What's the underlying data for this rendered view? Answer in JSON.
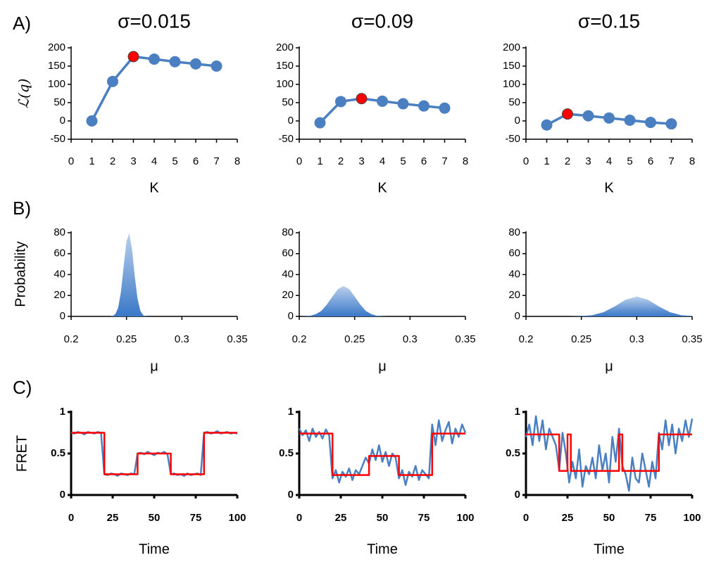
{
  "panel_labels": [
    "A)",
    "B)",
    "C)"
  ],
  "chart_data": [
    {
      "type": "line",
      "title": "σ=0.015",
      "xlabel": "K",
      "ylabel": "ℒ(q)",
      "x": [
        1,
        2,
        3,
        4,
        5,
        6,
        7
      ],
      "series": [
        {
          "color": "#4a7fc1",
          "values": [
            0,
            108,
            176,
            169,
            162,
            156,
            150
          ]
        }
      ],
      "markers": true,
      "highlight_index": 2,
      "highlight_color": "#ff0000",
      "xlim": [
        0,
        8
      ],
      "xticks": [
        0,
        1,
        2,
        3,
        4,
        5,
        6,
        7,
        8
      ],
      "ylim": [
        -50,
        200
      ],
      "yticks": [
        -50,
        0,
        50,
        100,
        150,
        200
      ],
      "grid": false
    },
    {
      "type": "line",
      "title": "σ=0.09",
      "xlabel": "K",
      "x": [
        1,
        2,
        3,
        4,
        5,
        6,
        7
      ],
      "series": [
        {
          "color": "#4a7fc1",
          "values": [
            -5,
            53,
            61,
            54,
            47,
            41,
            35
          ]
        }
      ],
      "markers": true,
      "highlight_index": 2,
      "highlight_color": "#ff0000",
      "xlim": [
        0,
        8
      ],
      "xticks": [
        0,
        1,
        2,
        3,
        4,
        5,
        6,
        7,
        8
      ],
      "ylim": [
        -50,
        200
      ],
      "yticks": [
        -50,
        0,
        50,
        100,
        150,
        200
      ],
      "grid": false
    },
    {
      "type": "line",
      "title": "σ=0.15",
      "xlabel": "K",
      "x": [
        1,
        2,
        3,
        4,
        5,
        6,
        7
      ],
      "series": [
        {
          "color": "#4a7fc1",
          "values": [
            -11,
            19,
            14,
            8,
            2,
            -4,
            -8
          ]
        }
      ],
      "markers": true,
      "highlight_index": 1,
      "highlight_color": "#ff0000",
      "xlim": [
        0,
        8
      ],
      "xticks": [
        0,
        1,
        2,
        3,
        4,
        5,
        6,
        7,
        8
      ],
      "ylim": [
        -50,
        200
      ],
      "yticks": [
        -50,
        0,
        50,
        100,
        150,
        200
      ],
      "grid": false
    },
    {
      "type": "area",
      "xlabel": "μ",
      "ylabel": "Probability",
      "x": [
        0.235,
        0.2375,
        0.24,
        0.2425,
        0.245,
        0.2475,
        0.25,
        0.2525,
        0.255,
        0.2575,
        0.26,
        0.2625,
        0.265,
        0.2675,
        0.27
      ],
      "series": [
        {
          "color": "#3a78c8",
          "values": [
            0,
            0.5,
            2.3,
            8.3,
            23.6,
            48.5,
            72,
            79.5,
            64,
            38,
            16.8,
            5.3,
            1.2,
            0.2,
            0
          ]
        }
      ],
      "xlim": [
        0.2,
        0.35
      ],
      "xticks": [
        0.2,
        0.25,
        0.3,
        0.35
      ],
      "ylim": [
        0,
        80
      ],
      "yticks": [
        0,
        20,
        40,
        60,
        80
      ],
      "grid": false
    },
    {
      "type": "area",
      "xlabel": "μ",
      "x": [
        0.2,
        0.205,
        0.21,
        0.215,
        0.22,
        0.225,
        0.23,
        0.235,
        0.24,
        0.245,
        0.25,
        0.255,
        0.26,
        0.265,
        0.27,
        0.275,
        0.28
      ],
      "series": [
        {
          "color": "#3a78c8",
          "values": [
            0,
            0.2,
            0.7,
            2.2,
            5.3,
            11.5,
            19,
            26.2,
            29,
            26.2,
            19,
            11.5,
            5.3,
            2.2,
            0.7,
            0.2,
            0
          ]
        }
      ],
      "xlim": [
        0.2,
        0.35
      ],
      "xticks": [
        0.2,
        0.25,
        0.3,
        0.35
      ],
      "ylim": [
        0,
        80
      ],
      "yticks": [
        0,
        20,
        40,
        60,
        80
      ],
      "grid": false
    },
    {
      "type": "area",
      "xlabel": "μ",
      "x": [
        0.24,
        0.25,
        0.26,
        0.27,
        0.28,
        0.29,
        0.3,
        0.31,
        0.32,
        0.33,
        0.34,
        0.35
      ],
      "series": [
        {
          "color": "#3a78c8",
          "values": [
            0,
            0.3,
            1.2,
            4,
            9.5,
            16,
            19,
            16,
            9.5,
            4,
            1.2,
            0.3
          ]
        }
      ],
      "xlim": [
        0.2,
        0.35
      ],
      "xticks": [
        0.2,
        0.25,
        0.3,
        0.35
      ],
      "ylim": [
        0,
        80
      ],
      "yticks": [
        0,
        20,
        40,
        60,
        80
      ],
      "grid": false
    },
    {
      "type": "line",
      "xlabel": "Time",
      "ylabel": "FRET",
      "markers": false,
      "series": [
        {
          "color": "#4a7fc1",
          "x": [
            0,
            2,
            4,
            6,
            8,
            10,
            12,
            14,
            16,
            18,
            20,
            22,
            24,
            26,
            28,
            30,
            32,
            34,
            36,
            38,
            40,
            42,
            44,
            46,
            48,
            50,
            52,
            54,
            56,
            58,
            60,
            62,
            64,
            66,
            68,
            70,
            72,
            74,
            76,
            78,
            80,
            82,
            84,
            86,
            88,
            90,
            92,
            94,
            96,
            98,
            100
          ],
          "values": [
            0.75,
            0.74,
            0.76,
            0.75,
            0.73,
            0.76,
            0.75,
            0.74,
            0.76,
            0.75,
            0.25,
            0.24,
            0.26,
            0.25,
            0.23,
            0.26,
            0.25,
            0.24,
            0.26,
            0.25,
            0.5,
            0.51,
            0.49,
            0.52,
            0.5,
            0.48,
            0.51,
            0.5,
            0.52,
            0.49,
            0.25,
            0.26,
            0.24,
            0.25,
            0.23,
            0.26,
            0.24,
            0.25,
            0.26,
            0.24,
            0.75,
            0.76,
            0.74,
            0.75,
            0.77,
            0.74,
            0.75,
            0.76,
            0.74,
            0.75,
            0.74
          ]
        },
        {
          "color": "#ff0000",
          "x": [
            0,
            20,
            20,
            40,
            40,
            60,
            60,
            80,
            80,
            100
          ],
          "values": [
            0.75,
            0.75,
            0.25,
            0.25,
            0.5,
            0.5,
            0.25,
            0.25,
            0.75,
            0.75
          ]
        }
      ],
      "xlim": [
        0,
        100
      ],
      "xticks": [
        0,
        25,
        50,
        75,
        100
      ],
      "ylim": [
        0,
        1
      ],
      "yticks": [
        0,
        0.5,
        1
      ],
      "grid": false
    },
    {
      "type": "line",
      "xlabel": "Time",
      "markers": false,
      "series": [
        {
          "color": "#4a7fc1",
          "x": [
            0,
            2,
            4,
            6,
            8,
            10,
            12,
            14,
            16,
            18,
            20,
            22,
            24,
            26,
            28,
            30,
            32,
            34,
            36,
            38,
            40,
            42,
            44,
            46,
            48,
            50,
            52,
            54,
            56,
            58,
            60,
            62,
            64,
            66,
            68,
            70,
            72,
            74,
            76,
            78,
            80,
            82,
            84,
            86,
            88,
            90,
            92,
            94,
            96,
            98,
            100
          ],
          "values": [
            0.8,
            0.72,
            0.78,
            0.65,
            0.8,
            0.7,
            0.76,
            0.68,
            0.79,
            0.72,
            0.2,
            0.3,
            0.15,
            0.28,
            0.22,
            0.32,
            0.18,
            0.3,
            0.25,
            0.35,
            0.45,
            0.38,
            0.55,
            0.42,
            0.6,
            0.4,
            0.52,
            0.35,
            0.5,
            0.45,
            0.2,
            0.3,
            0.12,
            0.28,
            0.22,
            0.35,
            0.18,
            0.3,
            0.25,
            0.2,
            0.85,
            0.6,
            0.9,
            0.65,
            0.78,
            0.88,
            0.62,
            0.8,
            0.7,
            0.85,
            0.75
          ]
        },
        {
          "color": "#ff0000",
          "x": [
            0,
            20,
            20,
            42,
            42,
            60,
            60,
            80,
            80,
            100
          ],
          "values": [
            0.74,
            0.74,
            0.24,
            0.24,
            0.47,
            0.47,
            0.24,
            0.24,
            0.74,
            0.74
          ]
        }
      ],
      "xlim": [
        0,
        100
      ],
      "xticks": [
        0,
        25,
        50,
        75,
        100
      ],
      "ylim": [
        0,
        1
      ],
      "yticks": [
        0,
        0.5,
        1
      ],
      "grid": false
    },
    {
      "type": "line",
      "xlabel": "Time",
      "markers": false,
      "series": [
        {
          "color": "#4a7fc1",
          "x": [
            0,
            2,
            4,
            6,
            8,
            10,
            12,
            14,
            16,
            18,
            20,
            22,
            24,
            26,
            28,
            30,
            32,
            34,
            36,
            38,
            40,
            42,
            44,
            46,
            48,
            50,
            52,
            54,
            56,
            58,
            60,
            62,
            64,
            66,
            68,
            70,
            72,
            74,
            76,
            78,
            80,
            82,
            84,
            86,
            88,
            90,
            92,
            94,
            96,
            98,
            100
          ],
          "values": [
            0.7,
            0.85,
            0.6,
            0.95,
            0.65,
            0.9,
            0.55,
            0.8,
            0.7,
            0.6,
            0.3,
            0.75,
            0.5,
            0.15,
            0.4,
            0.2,
            0.55,
            0.1,
            0.35,
            0.25,
            0.45,
            0.2,
            0.6,
            0.3,
            0.5,
            0.15,
            0.7,
            0.4,
            0.8,
            0.35,
            0.25,
            0.05,
            0.45,
            0.2,
            0.15,
            0.5,
            0.3,
            0.1,
            0.4,
            0.2,
            0.75,
            0.55,
            0.9,
            0.6,
            0.85,
            0.5,
            0.8,
            0.65,
            0.9,
            0.7,
            0.92
          ]
        },
        {
          "color": "#ff0000",
          "x": [
            0,
            20,
            20,
            25,
            25,
            27,
            27,
            56,
            56,
            58,
            58,
            80,
            80,
            100
          ],
          "values": [
            0.73,
            0.73,
            0.29,
            0.29,
            0.73,
            0.73,
            0.29,
            0.29,
            0.73,
            0.73,
            0.29,
            0.29,
            0.73,
            0.73
          ]
        }
      ],
      "xlim": [
        0,
        100
      ],
      "xticks": [
        0,
        25,
        50,
        75,
        100
      ],
      "ylim": [
        0,
        1
      ],
      "yticks": [
        0,
        0.5,
        1
      ],
      "grid": false
    }
  ]
}
